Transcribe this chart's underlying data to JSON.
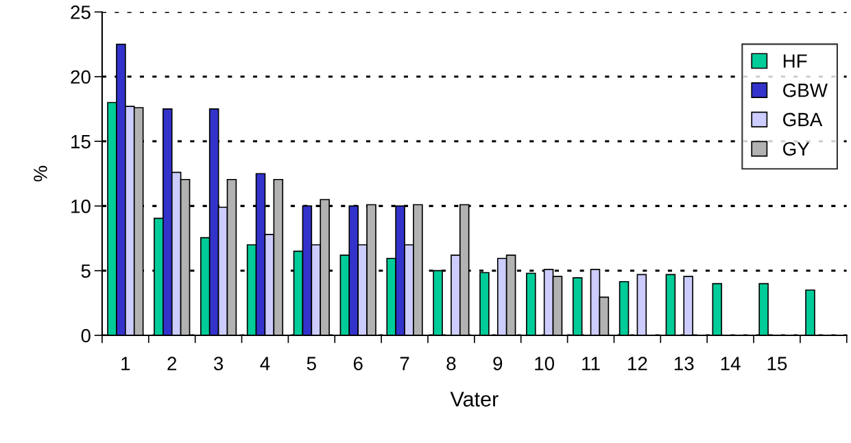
{
  "chart_data": {
    "type": "bar",
    "xlabel": "Vater",
    "ylabel": "%",
    "categories": [
      "1",
      "2",
      "3",
      "4",
      "5",
      "6",
      "7",
      "8",
      "9",
      "10",
      "11",
      "12",
      "13",
      "14",
      "15",
      null
    ],
    "series": [
      {
        "name": "HF",
        "color": "#00cc99",
        "values": [
          18.0,
          9.05,
          7.55,
          7.0,
          6.5,
          6.2,
          5.95,
          5.0,
          4.85,
          4.8,
          4.45,
          4.15,
          4.7,
          4.0,
          4.0,
          3.5
        ]
      },
      {
        "name": "GBW",
        "color": "#3333cc",
        "values": [
          22.5,
          17.5,
          17.5,
          12.5,
          10.0,
          10.0,
          10.0,
          null,
          null,
          null,
          null,
          null,
          null,
          null,
          null,
          null
        ]
      },
      {
        "name": "GBA",
        "color": "#ccccff",
        "values": [
          17.7,
          12.6,
          9.9,
          7.8,
          7.0,
          7.0,
          7.0,
          6.2,
          5.95,
          5.1,
          5.1,
          4.7,
          4.55,
          null,
          null,
          null
        ]
      },
      {
        "name": "GY",
        "color": "#b2b2b2",
        "values": [
          17.6,
          12.05,
          12.05,
          12.05,
          10.5,
          10.1,
          10.1,
          10.1,
          6.2,
          4.55,
          2.95,
          null,
          null,
          null,
          null,
          null
        ]
      }
    ],
    "ylim": [
      0,
      25
    ],
    "yticks": [
      0,
      5,
      10,
      15,
      20,
      25
    ],
    "grid": "y",
    "legend": "top right"
  }
}
